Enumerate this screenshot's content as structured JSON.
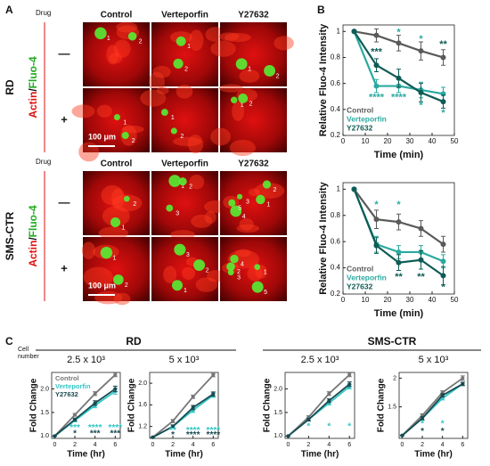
{
  "panel_labels": [
    "A",
    "B",
    "C"
  ],
  "panel_a": {
    "drug_label": "Drug",
    "columns": [
      "Control",
      "Verteporfin",
      "Y27632"
    ],
    "rows": [
      "—",
      "+"
    ],
    "groups": [
      {
        "name": "RD",
        "stain": {
          "actin": "Actin",
          "sep": "/",
          "fluo": "Fluo-4"
        },
        "scale_bar": "100 μm",
        "cell_labels": [
          [
            [
              "1",
              "2"
            ],
            [
              "1",
              "2"
            ],
            [
              "1",
              "2"
            ]
          ],
          [
            [
              "1",
              "2"
            ],
            [
              "1",
              "2"
            ],
            [
              "1",
              "2"
            ]
          ]
        ]
      },
      {
        "name": "SMS-CTR",
        "stain": {
          "actin": "Actin",
          "sep": "/",
          "fluo": "Fluo-4"
        },
        "scale_bar": "100 μm",
        "cell_labels": [
          [
            [
              "1",
              "2"
            ],
            [
              "1",
              "2",
              "3"
            ],
            [
              "1",
              "2",
              "3",
              "4",
              "5"
            ]
          ],
          [
            [
              "1",
              "2"
            ],
            [
              "1",
              "2",
              "3"
            ],
            [
              "1",
              "2",
              "3",
              "4",
              "5"
            ]
          ]
        ]
      }
    ]
  },
  "panel_c": {
    "cell_number": [
      "Cell",
      "number"
    ],
    "groups": [
      "RD",
      "SMS-CTR"
    ]
  },
  "chart_data": [
    {
      "type": "line",
      "ylabel": "Relative Fluo-4 Intensity",
      "xlabel": "Time (min)",
      "x": [
        5,
        15,
        25,
        35,
        45
      ],
      "xlim": [
        0,
        50
      ],
      "ylim": [
        0.2,
        1.05
      ],
      "xticks": [
        0,
        10,
        20,
        30,
        40,
        50
      ],
      "yticks": [
        0.2,
        0.4,
        0.6,
        0.8,
        1
      ],
      "legend": "lower left",
      "series": [
        {
          "name": "Control",
          "color": "#5a5a5a",
          "values": [
            1,
            0.97,
            0.91,
            0.85,
            0.8
          ],
          "errors": [
            0,
            0.05,
            0.06,
            0.07,
            0.06
          ]
        },
        {
          "name": "Verteporfin",
          "color": "#2aaaa0",
          "values": [
            1,
            0.58,
            0.58,
            0.55,
            0.52
          ],
          "errors": [
            0,
            0.05,
            0.05,
            0.06,
            0.05
          ]
        },
        {
          "name": "Y27632",
          "color": "#0e5c55",
          "values": [
            1,
            0.74,
            0.64,
            0.53,
            0.46
          ],
          "errors": [
            0,
            0.05,
            0.07,
            0.07,
            0.05
          ]
        }
      ],
      "annotations": [
        {
          "text": "*",
          "x": 25,
          "y": 0.99,
          "color": "#2aaaa0"
        },
        {
          "text": "*",
          "x": 35,
          "y": 0.94,
          "color": "#2aaaa0"
        },
        {
          "text": "**",
          "x": 45,
          "y": 0.9,
          "color": "#0e5c55"
        },
        {
          "text": "***",
          "x": 15,
          "y": 0.84,
          "color": "#0e5c55"
        },
        {
          "text": "****",
          "x": 15,
          "y": 0.49,
          "color": "#2aaaa0"
        },
        {
          "text": "****",
          "x": 25,
          "y": 0.49,
          "color": "#2aaaa0"
        },
        {
          "text": "*",
          "x": 35,
          "y": 0.43,
          "color": "#2aaaa0"
        },
        {
          "text": "*",
          "x": 45,
          "y": 0.37,
          "color": "#2aaaa0"
        }
      ]
    },
    {
      "type": "line",
      "ylabel": "Relative Fluo-4 Intensity",
      "xlabel": "Time (min)",
      "x": [
        5,
        15,
        25,
        35,
        45
      ],
      "xlim": [
        0,
        50
      ],
      "ylim": [
        0.2,
        1.05
      ],
      "xticks": [
        0,
        10,
        20,
        30,
        40,
        50
      ],
      "yticks": [
        0.2,
        0.4,
        0.6,
        0.8,
        1
      ],
      "legend": "lower left",
      "series": [
        {
          "name": "Control",
          "color": "#5a5a5a",
          "values": [
            1,
            0.77,
            0.75,
            0.7,
            0.58
          ],
          "errors": [
            0,
            0.07,
            0.06,
            0.06,
            0.06
          ]
        },
        {
          "name": "Verteporfin",
          "color": "#2aaaa0",
          "values": [
            1,
            0.58,
            0.52,
            0.52,
            0.45
          ],
          "errors": [
            0,
            0.06,
            0.05,
            0.05,
            0.05
          ]
        },
        {
          "name": "Y27632",
          "color": "#0e5c55",
          "values": [
            1,
            0.57,
            0.44,
            0.46,
            0.34
          ],
          "errors": [
            0,
            0.06,
            0.06,
            0.07,
            0.07
          ]
        }
      ],
      "annotations": [
        {
          "text": "*",
          "x": 15,
          "y": 0.88,
          "color": "#2aaaa0"
        },
        {
          "text": "*",
          "x": 25,
          "y": 0.88,
          "color": "#2aaaa0"
        },
        {
          "text": "**",
          "x": 25,
          "y": 0.33,
          "color": "#0e5c55"
        },
        {
          "text": "**",
          "x": 35,
          "y": 0.33,
          "color": "#0e5c55"
        },
        {
          "text": "*",
          "x": 45,
          "y": 0.25,
          "color": "#0e5c55"
        }
      ]
    },
    {
      "type": "line",
      "subtitle": "2.5 x 10³",
      "ylabel": "Fold Change",
      "xlabel": "Time (hr)",
      "x": [
        0,
        2,
        4,
        6
      ],
      "xlim": [
        -0.3,
        6.5
      ],
      "ylim": [
        0.95,
        2.35
      ],
      "xticks": [
        0,
        2,
        4,
        6
      ],
      "yticks": [
        {
          "value": 1,
          "label": "1.0"
        },
        {
          "value": 1.5,
          "label": "1.5"
        },
        {
          "value": 2,
          "label": "2.0"
        }
      ],
      "legend": "upper left",
      "series": [
        {
          "name": "Control",
          "color": "#777777",
          "values": [
            1,
            1.45,
            1.9,
            2.3
          ],
          "errors": [
            0,
            0.03,
            0.04,
            0.04
          ]
        },
        {
          "name": "Verteporfin",
          "color": "#33c6c6",
          "values": [
            1,
            1.33,
            1.65,
            1.95
          ],
          "errors": [
            0,
            0.03,
            0.05,
            0.06
          ]
        },
        {
          "name": "Y27632",
          "color": "#1a4a50",
          "values": [
            1,
            1.35,
            1.7,
            2.0
          ],
          "errors": [
            0,
            0.03,
            0.05,
            0.06
          ]
        }
      ],
      "annotations": [
        {
          "text": "***",
          "x": 2,
          "y": 1.17,
          "color": "#33c6c6"
        },
        {
          "text": "****",
          "x": 4,
          "y": 1.17,
          "color": "#33c6c6"
        },
        {
          "text": "****",
          "x": 6,
          "y": 1.17,
          "color": "#33c6c6"
        },
        {
          "text": "*",
          "x": 2,
          "y": 1.05,
          "color": "#1a4a50"
        },
        {
          "text": "***",
          "x": 4,
          "y": 1.05,
          "color": "#1a4a50"
        },
        {
          "text": "***",
          "x": 6,
          "y": 1.05,
          "color": "#1a4a50"
        }
      ]
    },
    {
      "type": "line",
      "subtitle": "5 x 10³",
      "ylabel": "Fold Change",
      "xlabel": "Time (hr)",
      "x": [
        0,
        2,
        4,
        6
      ],
      "xlim": [
        -0.3,
        6.5
      ],
      "ylim": [
        0.98,
        2.2
      ],
      "xticks": [
        0,
        2,
        4,
        6
      ],
      "yticks": [
        {
          "value": 1.2,
          "label": "1.2"
        },
        {
          "value": 1.6,
          "label": "1.6"
        },
        {
          "value": 2,
          "label": "2.0"
        }
      ],
      "series": [
        {
          "name": "Control",
          "color": "#777777",
          "values": [
            1,
            1.3,
            1.75,
            2.15
          ],
          "errors": [
            0,
            0.03,
            0.03,
            0.03
          ]
        },
        {
          "name": "Verteporfin",
          "color": "#33c6c6",
          "values": [
            1,
            1.2,
            1.5,
            1.78
          ],
          "errors": [
            0,
            0.03,
            0.04,
            0.04
          ]
        },
        {
          "name": "Y27632",
          "color": "#1a4a50",
          "values": [
            1,
            1.2,
            1.55,
            1.8
          ],
          "errors": [
            0,
            0.03,
            0.04,
            0.04
          ]
        }
      ],
      "annotations": [
        {
          "text": "**",
          "x": 2,
          "y": 1.12,
          "color": "#33c6c6"
        },
        {
          "text": "****",
          "x": 4,
          "y": 1.12,
          "color": "#33c6c6"
        },
        {
          "text": "****",
          "x": 6,
          "y": 1.12,
          "color": "#33c6c6"
        },
        {
          "text": "*",
          "x": 2,
          "y": 1.04,
          "color": "#1a4a50"
        },
        {
          "text": "****",
          "x": 4,
          "y": 1.04,
          "color": "#1a4a50"
        },
        {
          "text": "****",
          "x": 6,
          "y": 1.04,
          "color": "#1a4a50"
        }
      ]
    },
    {
      "type": "line",
      "subtitle": "2.5 x 10³",
      "ylabel": "Fold Change",
      "xlabel": "Time (hr)",
      "x": [
        0,
        2,
        4,
        6
      ],
      "xlim": [
        -0.3,
        6.5
      ],
      "ylim": [
        0.95,
        2.35
      ],
      "xticks": [
        0,
        2,
        4,
        6
      ],
      "yticks": [
        {
          "value": 1,
          "label": "1.0"
        },
        {
          "value": 1.5,
          "label": "1.5"
        },
        {
          "value": 2,
          "label": "2.0"
        }
      ],
      "series": [
        {
          "name": "Control",
          "color": "#777777",
          "values": [
            1,
            1.4,
            1.9,
            2.3
          ],
          "errors": [
            0,
            0.03,
            0.04,
            0.04
          ]
        },
        {
          "name": "Verteporfin",
          "color": "#33c6c6",
          "values": [
            1,
            1.35,
            1.7,
            2.05
          ],
          "errors": [
            0,
            0.03,
            0.04,
            0.05
          ]
        },
        {
          "name": "Y27632",
          "color": "#1a4a50",
          "values": [
            1,
            1.35,
            1.75,
            2.1
          ],
          "errors": [
            0,
            0.03,
            0.04,
            0.05
          ]
        }
      ],
      "annotations": [
        {
          "text": "*",
          "x": 2,
          "y": 1.2,
          "color": "#33c6c6"
        },
        {
          "text": "*",
          "x": 4,
          "y": 1.2,
          "color": "#33c6c6"
        },
        {
          "text": "*",
          "x": 6,
          "y": 1.2,
          "color": "#33c6c6"
        }
      ]
    },
    {
      "type": "line",
      "subtitle": "5 x 10³",
      "ylabel": "Fold Change",
      "xlabel": "Time (hr)",
      "x": [
        0,
        2,
        4,
        6
      ],
      "xlim": [
        -0.3,
        6.5
      ],
      "ylim": [
        0.95,
        2.1
      ],
      "xticks": [
        0,
        2,
        4,
        6
      ],
      "yticks": [
        1.5,
        2
      ],
      "series": [
        {
          "name": "Control",
          "color": "#777777",
          "values": [
            1,
            1.35,
            1.75,
            2.0
          ],
          "errors": [
            0,
            0.03,
            0.03,
            0.04
          ]
        },
        {
          "name": "Verteporfin",
          "color": "#33c6c6",
          "values": [
            1,
            1.3,
            1.65,
            1.9
          ],
          "errors": [
            0,
            0.03,
            0.03,
            0.03
          ]
        },
        {
          "name": "Y27632",
          "color": "#1a4a50",
          "values": [
            1,
            1.3,
            1.7,
            1.9
          ],
          "errors": [
            0,
            0.03,
            0.03,
            0.03
          ]
        }
      ],
      "annotations": [
        {
          "text": "*",
          "x": 2,
          "y": 1.2,
          "color": "#33c6c6"
        },
        {
          "text": "*",
          "x": 4,
          "y": 1.2,
          "color": "#33c6c6"
        },
        {
          "text": "*",
          "x": 2,
          "y": 1.07,
          "color": "#1a4a50"
        },
        {
          "text": "*",
          "x": 4,
          "y": 1.07,
          "color": "#1a4a50"
        }
      ]
    }
  ]
}
